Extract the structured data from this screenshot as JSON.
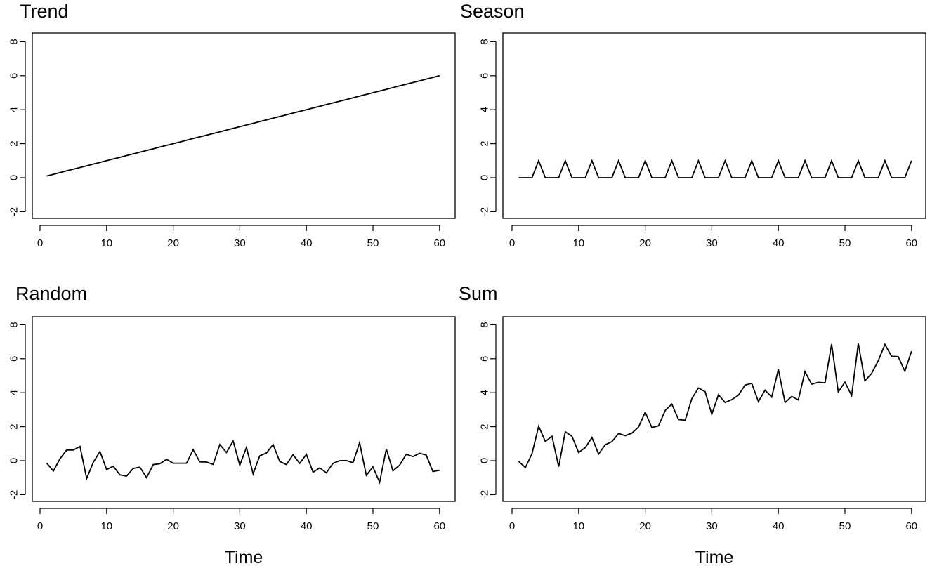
{
  "chart_data": [
    {
      "type": "line",
      "title": "Trend",
      "xlabel": "",
      "ylabel": "",
      "xlim": [
        0,
        60
      ],
      "ylim": [
        -2,
        8
      ],
      "xticks": [
        0,
        10,
        20,
        30,
        40,
        50,
        60
      ],
      "yticks": [
        -2,
        0,
        2,
        4,
        6,
        8
      ],
      "grid": false,
      "x_start": 1,
      "values": [
        0.1,
        0.2,
        0.3,
        0.4,
        0.5,
        0.6,
        0.7,
        0.8,
        0.9,
        1.0,
        1.1,
        1.2,
        1.3,
        1.4,
        1.5,
        1.6,
        1.7,
        1.8,
        1.9,
        2.0,
        2.1,
        2.2,
        2.3,
        2.4,
        2.5,
        2.6,
        2.7,
        2.8,
        2.9,
        3.0,
        3.1,
        3.2,
        3.3,
        3.4,
        3.5,
        3.6,
        3.7,
        3.8,
        3.9,
        4.0,
        4.1,
        4.2,
        4.3,
        4.4,
        4.5,
        4.6,
        4.7,
        4.8,
        4.9,
        5.0,
        5.1,
        5.2,
        5.3,
        5.4,
        5.5,
        5.6,
        5.7,
        5.8,
        5.9,
        6.0
      ]
    },
    {
      "type": "line",
      "title": "Season",
      "xlabel": "",
      "ylabel": "",
      "xlim": [
        0,
        60
      ],
      "ylim": [
        -2,
        8
      ],
      "xticks": [
        0,
        10,
        20,
        30,
        40,
        50,
        60
      ],
      "yticks": [
        -2,
        0,
        2,
        4,
        6,
        8
      ],
      "grid": false,
      "x_start": 1,
      "values": [
        0,
        0,
        0,
        1,
        0,
        0,
        0,
        1,
        0,
        0,
        0,
        1,
        0,
        0,
        0,
        1,
        0,
        0,
        0,
        1,
        0,
        0,
        0,
        1,
        0,
        0,
        0,
        1,
        0,
        0,
        0,
        1,
        0,
        0,
        0,
        1,
        0,
        0,
        0,
        1,
        0,
        0,
        0,
        1,
        0,
        0,
        0,
        1,
        0,
        0,
        0,
        1,
        0,
        0,
        0,
        1,
        0,
        0,
        0,
        1
      ]
    },
    {
      "type": "line",
      "title": "Random",
      "xlabel": "Time",
      "ylabel": "",
      "xlim": [
        0,
        60
      ],
      "ylim": [
        -2,
        8
      ],
      "xticks": [
        0,
        10,
        20,
        30,
        40,
        50,
        60
      ],
      "yticks": [
        -2,
        0,
        2,
        4,
        6,
        8
      ],
      "grid": false,
      "x_start": 1,
      "values": [
        -0.14,
        -0.61,
        0.11,
        0.63,
        0.63,
        0.84,
        -1.05,
        -0.1,
        0.54,
        -0.52,
        -0.33,
        -0.84,
        -0.91,
        -0.46,
        -0.38,
        -1.0,
        -0.23,
        -0.18,
        0.08,
        -0.15,
        -0.15,
        -0.15,
        0.65,
        -0.07,
        -0.08,
        -0.22,
        0.95,
        0.48,
        1.16,
        -0.27,
        0.78,
        -0.78,
        0.29,
        0.45,
        0.95,
        -0.05,
        -0.23,
        0.35,
        -0.16,
        0.37,
        -0.68,
        -0.42,
        -0.72,
        -0.16,
        0.0,
        0.01,
        -0.12,
        1.06,
        -0.86,
        -0.37,
        -1.27,
        0.69,
        -0.6,
        -0.27,
        0.38,
        0.24,
        0.44,
        0.33,
        -0.64,
        -0.56
      ]
    },
    {
      "type": "line",
      "title": "Sum",
      "xlabel": "Time",
      "ylabel": "",
      "xlim": [
        0,
        60
      ],
      "ylim": [
        -2,
        8
      ],
      "xticks": [
        0,
        10,
        20,
        30,
        40,
        50,
        60
      ],
      "yticks": [
        -2,
        0,
        2,
        4,
        6,
        8
      ],
      "grid": false,
      "x_start": 1,
      "values": [
        -0.04,
        -0.41,
        0.41,
        2.03,
        1.13,
        1.44,
        -0.35,
        1.7,
        1.44,
        0.48,
        0.77,
        1.36,
        0.39,
        0.94,
        1.12,
        1.6,
        1.47,
        1.62,
        1.98,
        2.85,
        1.95,
        2.05,
        2.95,
        3.33,
        2.42,
        2.38,
        3.65,
        4.28,
        4.06,
        2.73,
        3.88,
        3.42,
        3.59,
        3.85,
        4.45,
        4.55,
        3.47,
        4.15,
        3.74,
        5.37,
        3.42,
        3.78,
        3.58,
        5.24,
        4.5,
        4.61,
        4.58,
        6.86,
        4.04,
        4.63,
        3.83,
        6.89,
        4.7,
        5.13,
        5.88,
        6.84,
        6.14,
        6.13,
        5.26,
        6.44
      ]
    }
  ]
}
